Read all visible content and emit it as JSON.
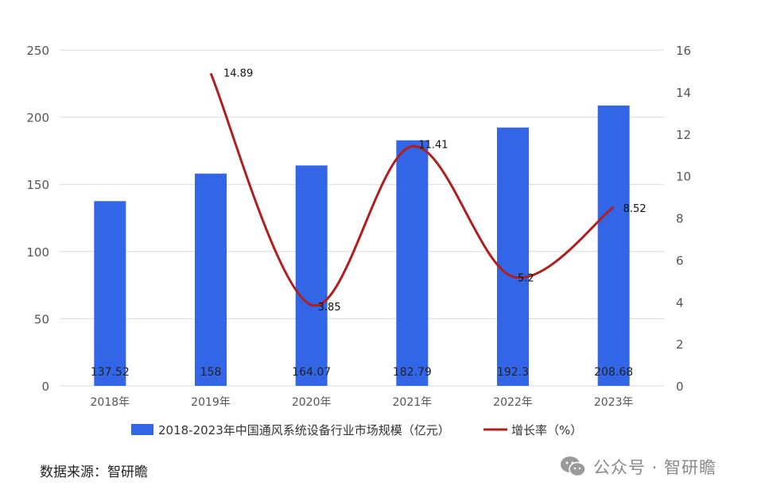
{
  "chart_data": {
    "type": "bar",
    "categories": [
      "2018年",
      "2019年",
      "2020年",
      "2021年",
      "2022年",
      "2023年"
    ],
    "series": [
      {
        "name": "2018-2023年中国通风系统设备行业市场规模（亿元）",
        "type": "bar",
        "axis": "left",
        "values": [
          137.52,
          158,
          164.07,
          182.79,
          192.3,
          208.68
        ],
        "labels": [
          "137.52",
          "158",
          "164.07",
          "182.79",
          "192.3",
          "208.68"
        ],
        "color": "#3366e6"
      },
      {
        "name": "增长率（%）",
        "type": "line",
        "axis": "right",
        "values": [
          null,
          14.89,
          3.85,
          11.41,
          5.2,
          8.52
        ],
        "labels": [
          "",
          "14.89",
          "3.85",
          "11.41",
          "5.2",
          "8.52"
        ],
        "color": "#b01e1e"
      }
    ],
    "y_left": {
      "lim": [
        0,
        250
      ],
      "ticks": [
        "0",
        "50",
        "100",
        "150",
        "200",
        "250"
      ]
    },
    "y_right": {
      "lim": [
        0,
        16
      ],
      "ticks": [
        "0",
        "2",
        "4",
        "6",
        "8",
        "10",
        "12",
        "14",
        "16"
      ]
    },
    "grid": true,
    "legend": "bottom"
  },
  "footer": {
    "source": "数据来源：智研瞻",
    "watermark": "公众号 · 智研瞻"
  },
  "icons": {
    "watermark_icon": "wechat-icon"
  }
}
